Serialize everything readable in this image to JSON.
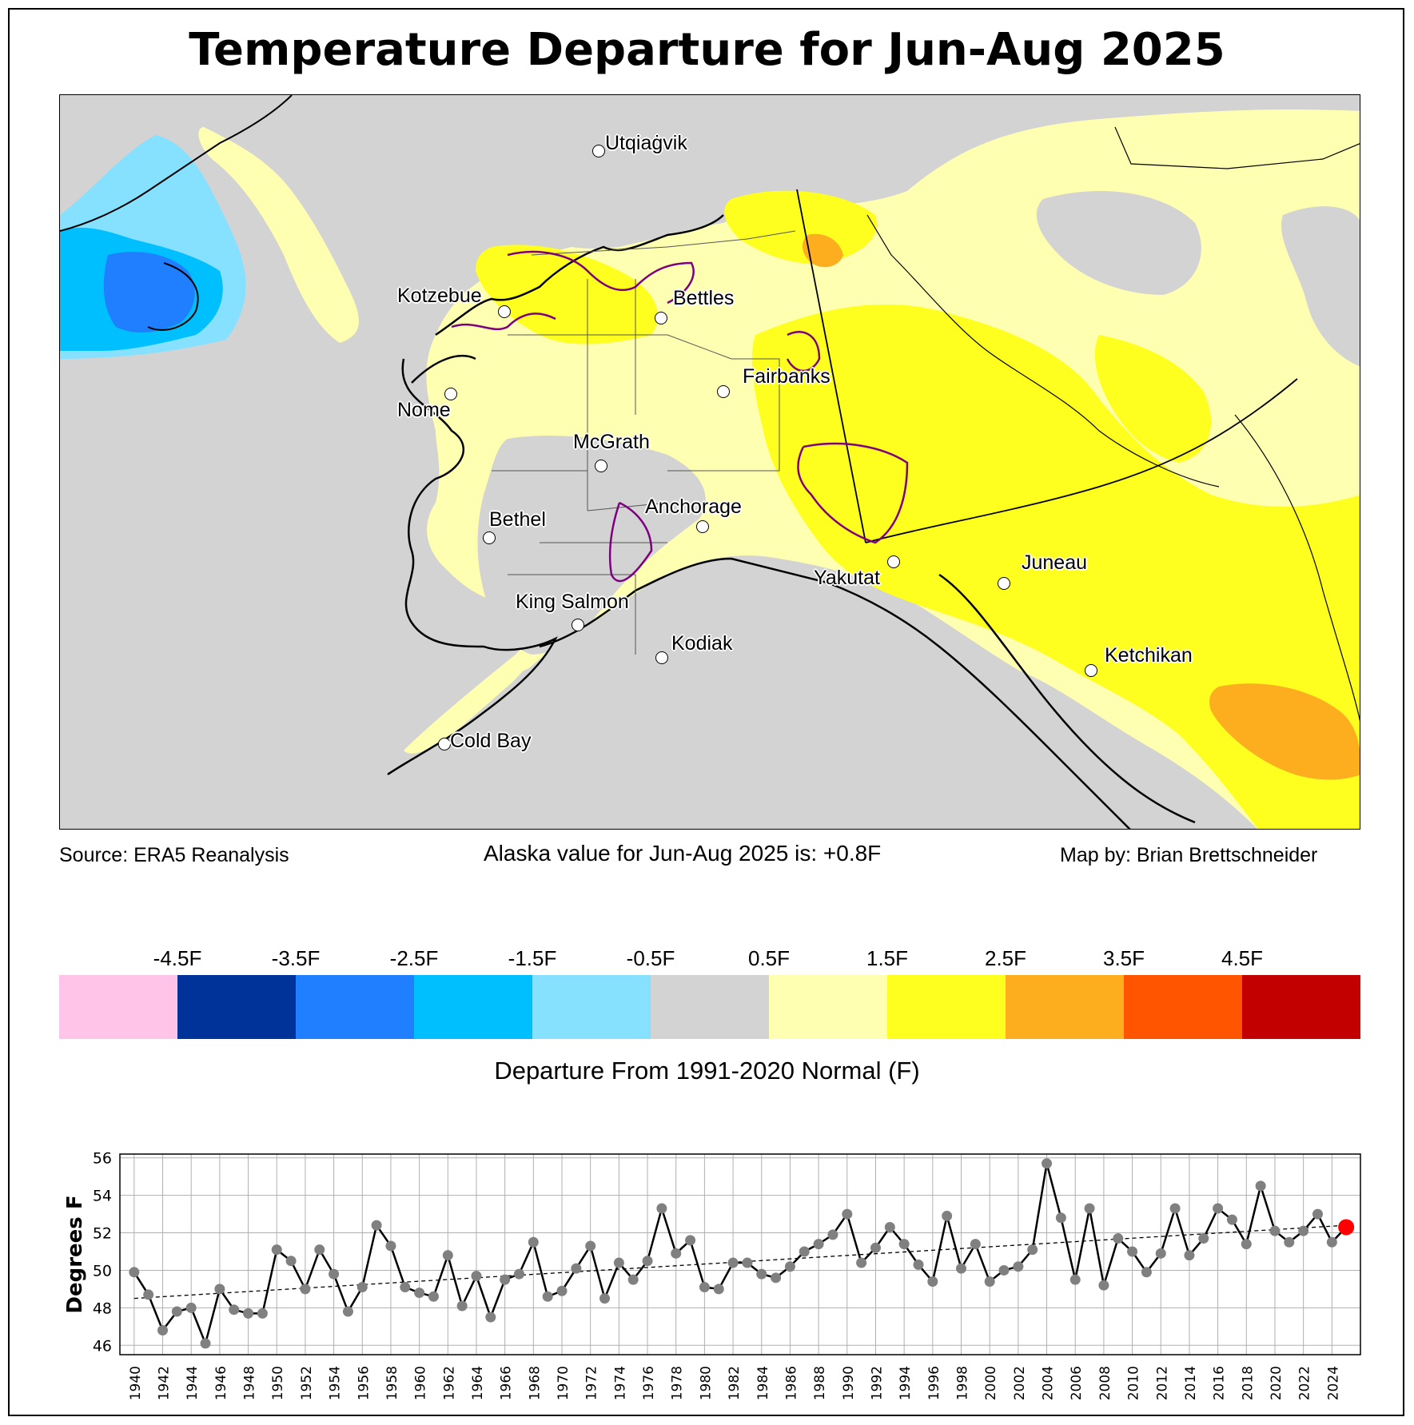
{
  "title": "Temperature Departure for Jun-Aug 2025",
  "footer": {
    "source": "Source: ERA5 Reanalysis",
    "statewide": "Alaska value for Jun-Aug 2025 is: +0.8F",
    "credit": "Map by: Brian Brettschneider"
  },
  "map": {
    "cities": [
      {
        "name": "Utqiaġvik",
        "key": "utqiagvik"
      },
      {
        "name": "Kotzebue",
        "key": "kotzebue"
      },
      {
        "name": "Bettles",
        "key": "bettles"
      },
      {
        "name": "Nome",
        "key": "nome"
      },
      {
        "name": "Fairbanks",
        "key": "fairbanks"
      },
      {
        "name": "McGrath",
        "key": "mcgrath"
      },
      {
        "name": "Anchorage",
        "key": "anchorage"
      },
      {
        "name": "Bethel",
        "key": "bethel"
      },
      {
        "name": "Yakutat",
        "key": "yakutat"
      },
      {
        "name": "Juneau",
        "key": "juneau"
      },
      {
        "name": "King Salmon",
        "key": "king-salmon"
      },
      {
        "name": "Kodiak",
        "key": "kodiak"
      },
      {
        "name": "Ketchikan",
        "key": "ketchikan"
      },
      {
        "name": "Cold Bay",
        "key": "cold-bay"
      }
    ],
    "colors": {
      "background": "#d3d3d3",
      "pale_yellow": "#ffffb2",
      "yellow": "#ffff1f",
      "orange": "#fdae1f",
      "light_blue": "#85e1ff",
      "mid_blue": "#00bfff",
      "blue": "#1f7fff",
      "wilderness_outline": "#7f007f"
    }
  },
  "legend": {
    "title": "Departure From 1991-2020 Normal (F)",
    "ticks": [
      "-4.5F",
      "-3.5F",
      "-2.5F",
      "-1.5F",
      "-0.5F",
      "0.5F",
      "1.5F",
      "2.5F",
      "3.5F",
      "4.5F"
    ],
    "colors": [
      "#ffc4e8",
      "#00339a",
      "#1f7fff",
      "#00bfff",
      "#85e1ff",
      "#d3d3d3",
      "#ffffb2",
      "#ffff1f",
      "#fdae1f",
      "#ff5500",
      "#c20000"
    ]
  },
  "chart_data": {
    "type": "line",
    "title": "",
    "xlabel": "",
    "ylabel": "Degrees F",
    "ylim": [
      45.5,
      56.2
    ],
    "yticks": [
      46,
      48,
      50,
      52,
      54,
      56
    ],
    "xlim": [
      1939,
      2026
    ],
    "xticks": [
      1940,
      1942,
      1944,
      1946,
      1948,
      1950,
      1952,
      1954,
      1956,
      1958,
      1960,
      1962,
      1964,
      1966,
      1968,
      1970,
      1972,
      1974,
      1976,
      1978,
      1980,
      1982,
      1984,
      1986,
      1988,
      1990,
      1992,
      1994,
      1996,
      1998,
      2000,
      2002,
      2004,
      2006,
      2008,
      2010,
      2012,
      2014,
      2016,
      2018,
      2020,
      2022,
      2024
    ],
    "grid": true,
    "series": [
      {
        "name": "Jun-Aug mean temperature",
        "color": "#000000",
        "marker_color": "#808080",
        "x": [
          1940,
          1941,
          1942,
          1943,
          1944,
          1945,
          1946,
          1947,
          1948,
          1949,
          1950,
          1951,
          1952,
          1953,
          1954,
          1955,
          1956,
          1957,
          1958,
          1959,
          1960,
          1961,
          1962,
          1963,
          1964,
          1965,
          1966,
          1967,
          1968,
          1969,
          1970,
          1971,
          1972,
          1973,
          1974,
          1975,
          1976,
          1977,
          1978,
          1979,
          1980,
          1981,
          1982,
          1983,
          1984,
          1985,
          1986,
          1987,
          1988,
          1989,
          1990,
          1991,
          1992,
          1993,
          1994,
          1995,
          1996,
          1997,
          1998,
          1999,
          2000,
          2001,
          2002,
          2003,
          2004,
          2005,
          2006,
          2007,
          2008,
          2009,
          2010,
          2011,
          2012,
          2013,
          2014,
          2015,
          2016,
          2017,
          2018,
          2019,
          2020,
          2021,
          2022,
          2023,
          2024,
          2025
        ],
        "values": [
          49.9,
          48.7,
          46.8,
          47.8,
          48.0,
          46.1,
          49.0,
          47.9,
          47.7,
          47.7,
          51.1,
          50.5,
          49.0,
          51.1,
          49.8,
          47.8,
          49.1,
          52.4,
          51.3,
          49.1,
          48.8,
          48.6,
          50.8,
          48.1,
          49.7,
          47.5,
          49.5,
          49.8,
          51.5,
          48.6,
          48.9,
          50.1,
          51.3,
          48.5,
          50.4,
          49.5,
          50.5,
          53.3,
          50.9,
          51.6,
          49.1,
          49.0,
          50.4,
          50.4,
          49.8,
          49.6,
          50.2,
          51.0,
          51.4,
          51.9,
          53.0,
          50.4,
          51.2,
          52.3,
          51.4,
          50.3,
          49.4,
          52.9,
          50.1,
          51.4,
          49.4,
          50.0,
          50.2,
          51.1,
          55.7,
          52.8,
          49.5,
          53.3,
          49.2,
          51.7,
          51.0,
          49.9,
          50.9,
          53.3,
          50.8,
          51.7,
          53.3,
          52.7,
          51.4,
          54.5,
          52.1,
          51.5,
          52.1,
          53.0,
          51.5,
          52.3
        ]
      },
      {
        "name": "Linear trend",
        "style": "dashed",
        "x": [
          1940,
          2025
        ],
        "values": [
          48.5,
          52.4
        ]
      }
    ],
    "highlight": {
      "x": 2025,
      "value": 52.3,
      "color": "#ff0000"
    }
  }
}
